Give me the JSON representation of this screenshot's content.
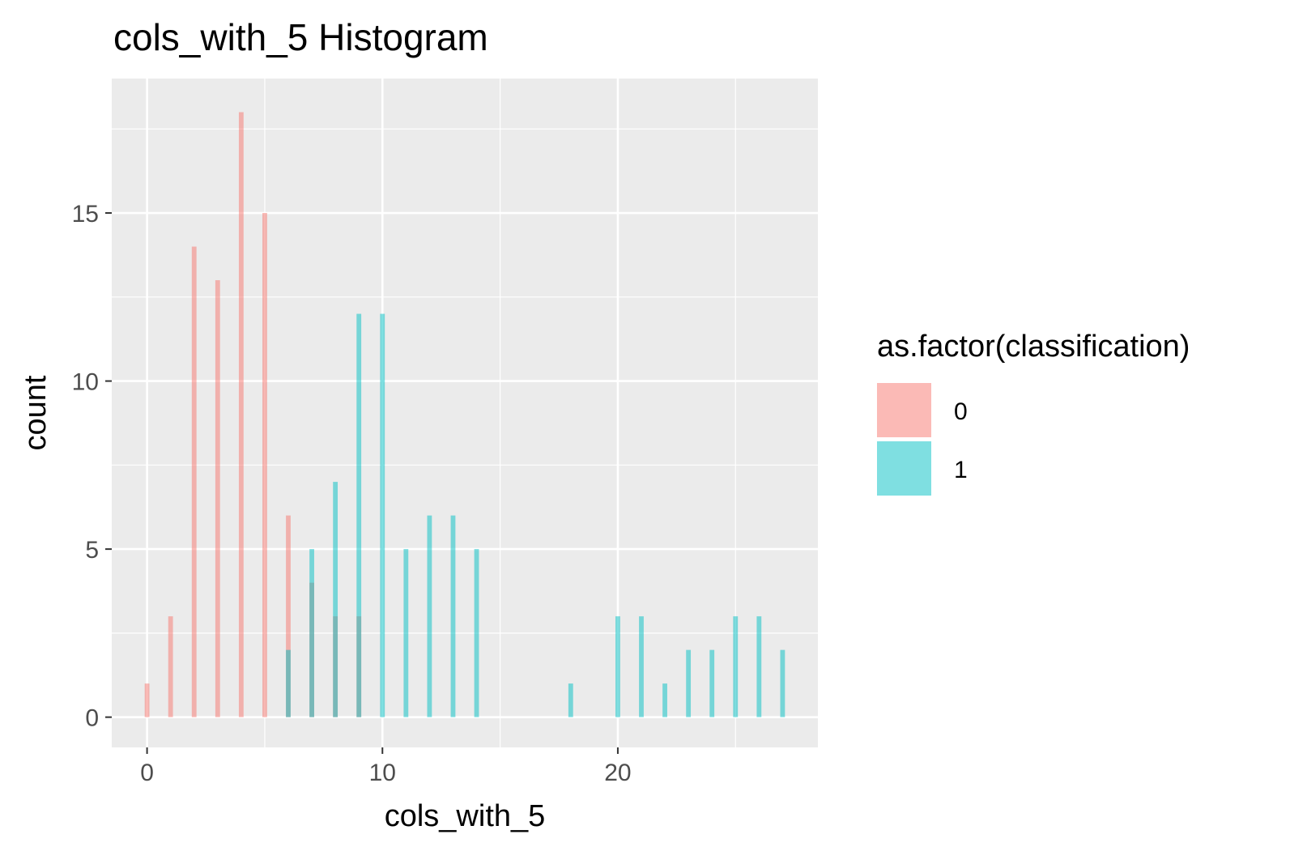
{
  "chart_data": {
    "type": "bar",
    "subtype": "histogram",
    "title": "cols_with_5 Histogram",
    "xlabel": "cols_with_5",
    "ylabel": "count",
    "xlim": [
      -1.5,
      28.5
    ],
    "ylim": [
      -0.9,
      19.0
    ],
    "x_ticks": [
      0,
      10,
      20
    ],
    "y_ticks": [
      0,
      5,
      10,
      15
    ],
    "x_tick_labels": [
      "0",
      "10",
      "20"
    ],
    "y_tick_labels": [
      "0",
      "5",
      "10",
      "15"
    ],
    "grid": true,
    "background_color": "#ebebeb",
    "bar_opacity": 0.5,
    "legend": {
      "title": "as.factor(classification)",
      "position": "right",
      "entries": [
        {
          "label": "0",
          "color": "#F8766D"
        },
        {
          "label": "1",
          "color": "#00BFC4"
        }
      ]
    },
    "series": [
      {
        "name": "0",
        "color": "#F8766D",
        "x": [
          0,
          1,
          2,
          3,
          4,
          5,
          6,
          7,
          8,
          9
        ],
        "values": [
          1,
          3,
          14,
          13,
          18,
          15,
          6,
          4,
          3,
          3
        ]
      },
      {
        "name": "1",
        "color": "#00BFC4",
        "x": [
          6,
          7,
          8,
          9,
          10,
          11,
          12,
          13,
          14,
          18,
          20,
          21,
          22,
          23,
          24,
          25,
          26,
          27
        ],
        "values": [
          2,
          5,
          7,
          12,
          12,
          5,
          6,
          6,
          5,
          1,
          3,
          3,
          1,
          2,
          2,
          3,
          3,
          2
        ]
      }
    ]
  }
}
